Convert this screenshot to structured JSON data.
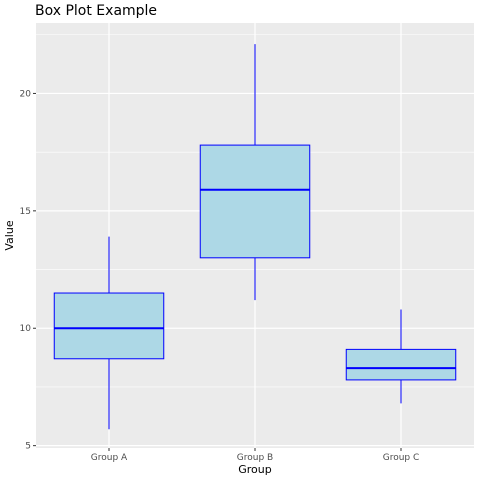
{
  "chart_data": {
    "type": "box",
    "title": "Box Plot Example",
    "xlabel": "Group",
    "ylabel": "Value",
    "categories": [
      "Group A",
      "Group B",
      "Group C"
    ],
    "y_ticks": [
      5,
      10,
      15,
      20
    ],
    "ylim": [
      4.9,
      23.0
    ],
    "grid": true,
    "boxes": [
      {
        "name": "Group A",
        "whisker_low": 5.7,
        "q1": 8.7,
        "median": 10.0,
        "q3": 11.5,
        "whisker_high": 13.9
      },
      {
        "name": "Group B",
        "whisker_low": 11.2,
        "q1": 13.0,
        "median": 15.9,
        "q3": 17.8,
        "whisker_high": 22.1
      },
      {
        "name": "Group C",
        "whisker_low": 6.8,
        "q1": 7.8,
        "median": 8.3,
        "q3": 9.1,
        "whisker_high": 10.8
      }
    ],
    "colors": {
      "panel": "#ebebeb",
      "grid": "#ffffff",
      "box_fill": "#add8e6",
      "box_stroke": "#0000ff",
      "median": "#0000ff",
      "whisker": "#0000ff",
      "tick": "#333333"
    }
  }
}
